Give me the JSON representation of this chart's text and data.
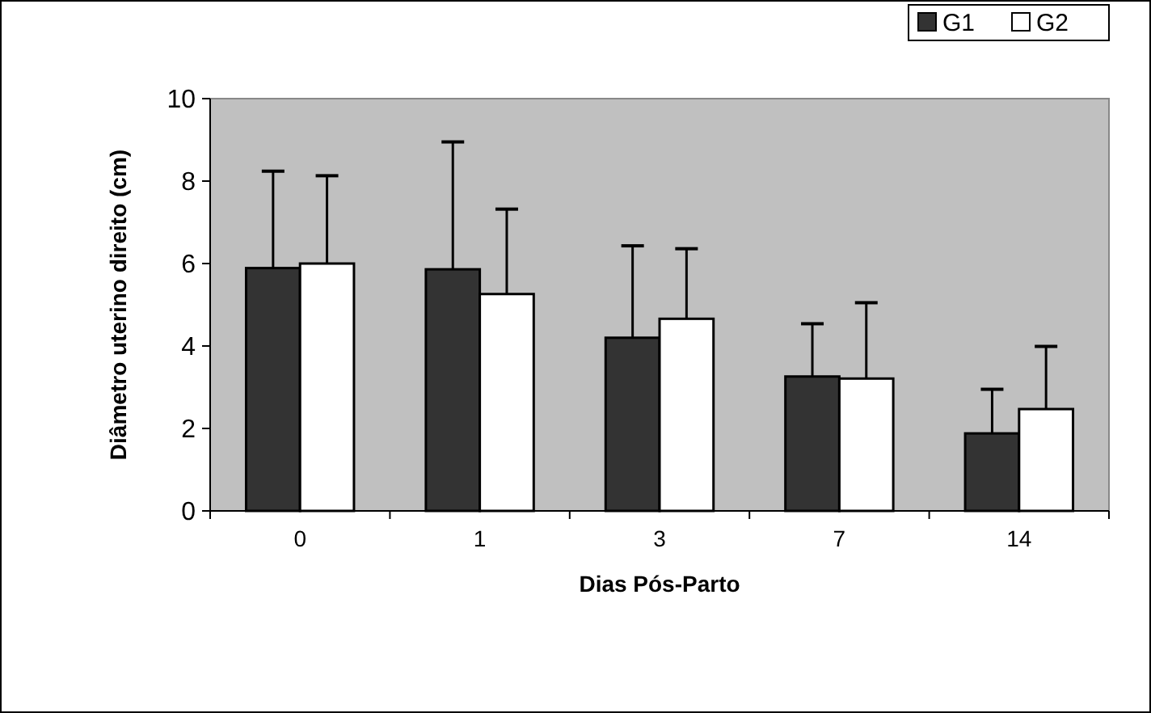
{
  "chart_data": {
    "type": "bar",
    "xlabel": "Dias Pós-Parto",
    "ylabel": "Diâmetro uterino direito (cm)",
    "categories": [
      "0",
      "1",
      "3",
      "7",
      "14"
    ],
    "series": [
      {
        "name": "G1",
        "color": "#333333",
        "values": [
          5.89,
          5.86,
          4.2,
          3.26,
          1.88
        ],
        "errors": [
          [
            5.89,
            8.24
          ],
          [
            5.86,
            8.95
          ],
          [
            4.2,
            6.43
          ],
          [
            3.26,
            4.54
          ],
          [
            1.88,
            2.95
          ]
        ]
      },
      {
        "name": "G2",
        "color": "#ffffff",
        "values": [
          6.0,
          5.26,
          4.66,
          3.21,
          2.47
        ],
        "errors": [
          [
            6.0,
            8.13
          ],
          [
            5.26,
            7.32
          ],
          [
            4.66,
            6.36
          ],
          [
            3.21,
            5.05
          ],
          [
            2.47,
            3.99
          ]
        ]
      }
    ],
    "ylim": [
      0,
      10
    ],
    "yticks": [
      0,
      2,
      4,
      6,
      8,
      10
    ],
    "grid": false,
    "legend": "top right"
  }
}
